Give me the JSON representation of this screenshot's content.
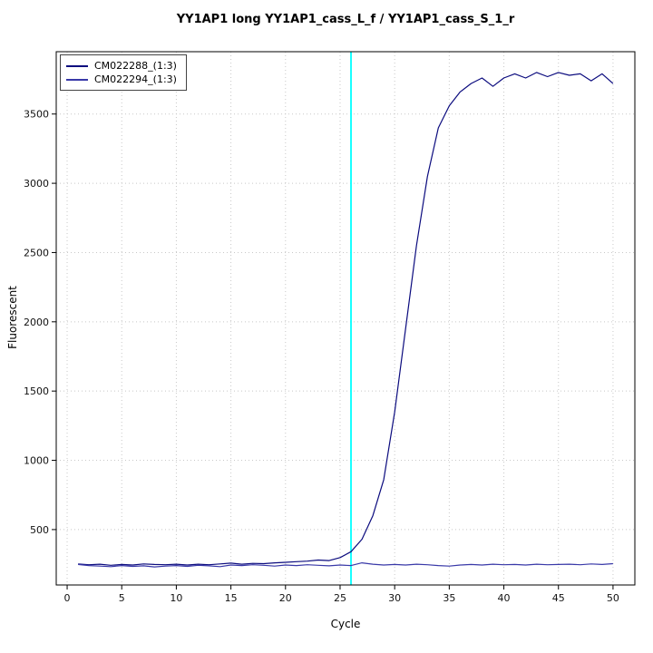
{
  "figure": {
    "background": "#ffffff"
  },
  "chart_data": {
    "type": "line",
    "title": "YY1AP1 long YY1AP1_cass_L_f / YY1AP1_cass_S_1_r",
    "xlabel": "Cycle",
    "ylabel": "Fluorescent",
    "xlim": [
      -1,
      52
    ],
    "ylim": [
      100,
      3950
    ],
    "xticks": [
      0,
      5,
      10,
      15,
      20,
      25,
      30,
      35,
      40,
      45,
      50
    ],
    "yticks": [
      500,
      1000,
      1500,
      2000,
      2500,
      3000,
      3500
    ],
    "grid": "dotted",
    "grid_color": "#c8c8c8",
    "axis_color": "#000000",
    "legend_position": "top-left",
    "threshold_line": {
      "x": 26,
      "color": "#00ffff"
    },
    "x": [
      1,
      2,
      3,
      4,
      5,
      6,
      7,
      8,
      9,
      10,
      11,
      12,
      13,
      14,
      15,
      16,
      17,
      18,
      19,
      20,
      21,
      22,
      23,
      24,
      25,
      26,
      27,
      28,
      29,
      30,
      31,
      32,
      33,
      34,
      35,
      36,
      37,
      38,
      39,
      40,
      41,
      42,
      43,
      44,
      45,
      46,
      47,
      48,
      49,
      50
    ],
    "series": [
      {
        "name": "CM022288_(1:3)",
        "color": "#0b0b7e",
        "values": [
          252,
          246,
          250,
          242,
          248,
          244,
          252,
          248,
          246,
          250,
          244,
          250,
          246,
          252,
          258,
          250,
          256,
          254,
          260,
          264,
          268,
          272,
          280,
          276,
          298,
          340,
          430,
          600,
          860,
          1350,
          1950,
          2550,
          3050,
          3400,
          3560,
          3660,
          3720,
          3760,
          3700,
          3760,
          3790,
          3760,
          3800,
          3770,
          3800,
          3780,
          3790,
          3740,
          3790,
          3720
        ]
      },
      {
        "name": "CM022294_(1:3)",
        "color": "#3939a8",
        "values": [
          248,
          240,
          236,
          232,
          240,
          234,
          238,
          230,
          236,
          240,
          234,
          242,
          238,
          232,
          244,
          240,
          246,
          242,
          236,
          244,
          240,
          246,
          242,
          238,
          244,
          240,
          260,
          250,
          244,
          248,
          244,
          250,
          246,
          240,
          236,
          244,
          248,
          244,
          250,
          246,
          248,
          244,
          250,
          246,
          248,
          250,
          246,
          252,
          248,
          254
        ]
      }
    ]
  }
}
